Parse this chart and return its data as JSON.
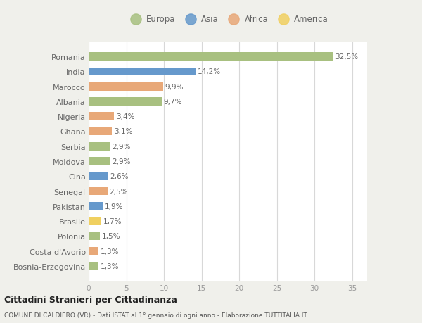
{
  "categories": [
    "Romania",
    "India",
    "Marocco",
    "Albania",
    "Nigeria",
    "Ghana",
    "Serbia",
    "Moldova",
    "Cina",
    "Senegal",
    "Pakistan",
    "Brasile",
    "Polonia",
    "Costa d'Avorio",
    "Bosnia-Erzegovina"
  ],
  "values": [
    32.5,
    14.2,
    9.9,
    9.7,
    3.4,
    3.1,
    2.9,
    2.9,
    2.6,
    2.5,
    1.9,
    1.7,
    1.5,
    1.3,
    1.3
  ],
  "labels": [
    "32,5%",
    "14,2%",
    "9,9%",
    "9,7%",
    "3,4%",
    "3,1%",
    "2,9%",
    "2,9%",
    "2,6%",
    "2,5%",
    "1,9%",
    "1,7%",
    "1,5%",
    "1,3%",
    "1,3%"
  ],
  "continent": [
    "Europa",
    "Asia",
    "Africa",
    "Europa",
    "Africa",
    "Africa",
    "Europa",
    "Europa",
    "Asia",
    "Africa",
    "Asia",
    "America",
    "Europa",
    "Africa",
    "Europa"
  ],
  "colors": {
    "Europa": "#a8c080",
    "Asia": "#6699cc",
    "Africa": "#e8a878",
    "America": "#f0d060"
  },
  "legend_order": [
    "Europa",
    "Asia",
    "Africa",
    "America"
  ],
  "title": "Cittadini Stranieri per Cittadinanza",
  "subtitle": "COMUNE DI CALDIERO (VR) - Dati ISTAT al 1° gennaio di ogni anno - Elaborazione TUTTITALIA.IT",
  "xlim": [
    0,
    37
  ],
  "xticks": [
    0,
    5,
    10,
    15,
    20,
    25,
    30,
    35
  ],
  "background_color": "#f0f0eb",
  "plot_bg_color": "#ffffff",
  "grid_color": "#d8d8d8",
  "label_color": "#666666",
  "tick_color": "#999999"
}
